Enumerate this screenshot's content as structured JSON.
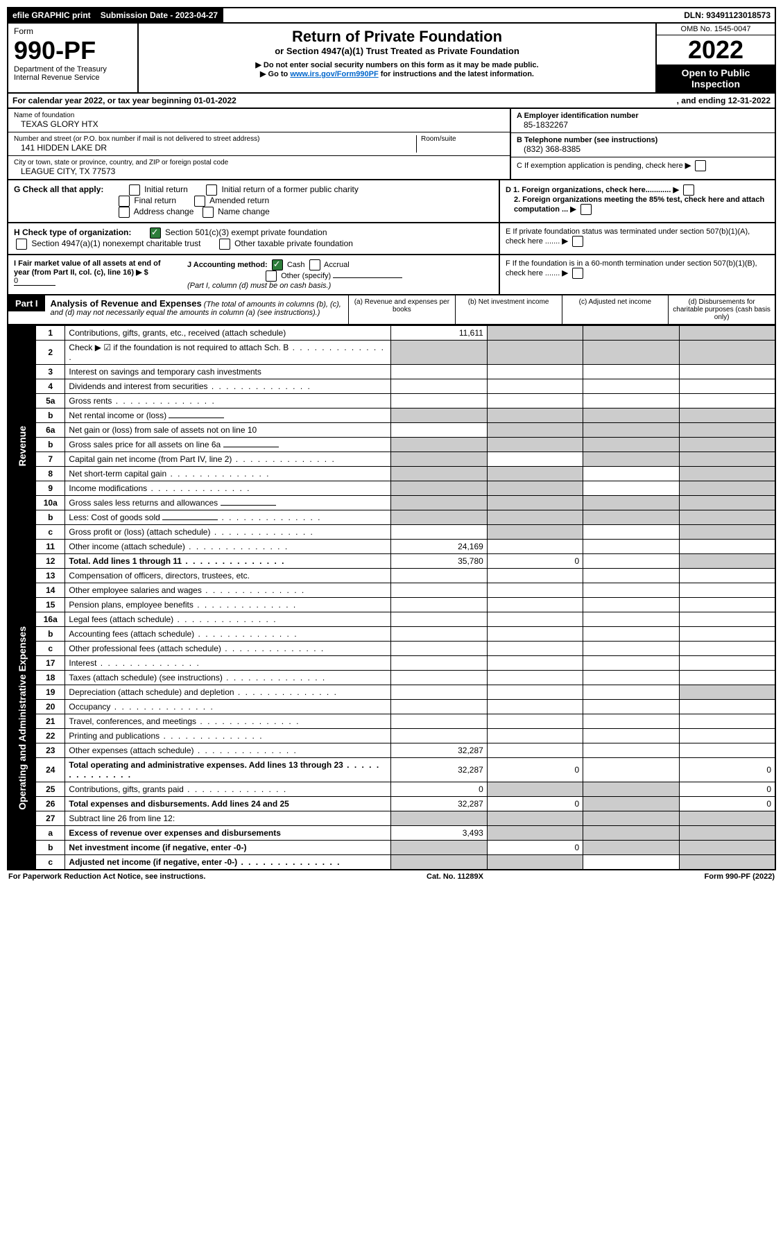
{
  "topbar": {
    "efile": "efile GRAPHIC print",
    "submission_label": "Submission Date - 2023-04-27",
    "dln": "DLN: 93491123018573"
  },
  "header": {
    "form_word": "Form",
    "form_number": "990-PF",
    "dept": "Department of the Treasury",
    "irs": "Internal Revenue Service",
    "omb": "OMB No. 1545-0047",
    "year": "2022",
    "open": "Open to Public Inspection",
    "title": "Return of Private Foundation",
    "subtitle": "or Section 4947(a)(1) Trust Treated as Private Foundation",
    "note1": "▶ Do not enter social security numbers on this form as it may be made public.",
    "note2_pre": "▶ Go to ",
    "note2_link": "www.irs.gov/Form990PF",
    "note2_post": " for instructions and the latest information."
  },
  "calyear": {
    "left": "For calendar year 2022, or tax year beginning 01-01-2022",
    "right": ", and ending 12-31-2022"
  },
  "info": {
    "name_label": "Name of foundation",
    "name": "TEXAS GLORY HTX",
    "addr_label": "Number and street (or P.O. box number if mail is not delivered to street address)",
    "room_label": "Room/suite",
    "addr": "141 HIDDEN LAKE DR",
    "city_label": "City or town, state or province, country, and ZIP or foreign postal code",
    "city": "LEAGUE CITY, TX  77573",
    "a_label": "A Employer identification number",
    "a_value": "85-1832267",
    "b_label": "B Telephone number (see instructions)",
    "b_value": "(832) 368-8385",
    "c_label": "C If exemption application is pending, check here",
    "d1": "D 1. Foreign organizations, check here............",
    "d2": "2. Foreign organizations meeting the 85% test, check here and attach computation ...",
    "e": "E  If private foundation status was terminated under section 507(b)(1)(A), check here .......",
    "f": "F  If the foundation is in a 60-month termination under section 507(b)(1)(B), check here ......."
  },
  "g": {
    "label": "G Check all that apply:",
    "opts": [
      "Initial return",
      "Initial return of a former public charity",
      "Final return",
      "Amended return",
      "Address change",
      "Name change"
    ]
  },
  "h": {
    "label": "H Check type of organization:",
    "opt1": "Section 501(c)(3) exempt private foundation",
    "opt2": "Section 4947(a)(1) nonexempt charitable trust",
    "opt3": "Other taxable private foundation"
  },
  "i": {
    "label": "I Fair market value of all assets at end of year (from Part II, col. (c), line 16)",
    "arrow": "▶ $",
    "value": "0"
  },
  "j": {
    "label": "J Accounting method:",
    "cash": "Cash",
    "accrual": "Accrual",
    "other": "Other (specify)",
    "note": "(Part I, column (d) must be on cash basis.)"
  },
  "part1": {
    "label": "Part I",
    "title": "Analysis of Revenue and Expenses",
    "note": " (The total of amounts in columns (b), (c), and (d) may not necessarily equal the amounts in column (a) (see instructions).)",
    "col_a": "(a)  Revenue and expenses per books",
    "col_b": "(b)  Net investment income",
    "col_c": "(c)  Adjusted net income",
    "col_d": "(d)  Disbursements for charitable purposes (cash basis only)"
  },
  "side": {
    "revenue": "Revenue",
    "expenses": "Operating and Administrative Expenses"
  },
  "rows": [
    {
      "n": "1",
      "t": "Contributions, gifts, grants, etc., received (attach schedule)",
      "a": "11,611",
      "shade": [
        "b",
        "c",
        "d"
      ]
    },
    {
      "n": "2",
      "t": "Check ▶ ☑ if the foundation is not required to attach Sch. B",
      "dots": true,
      "shade": [
        "a",
        "b",
        "c",
        "d"
      ]
    },
    {
      "n": "3",
      "t": "Interest on savings and temporary cash investments"
    },
    {
      "n": "4",
      "t": "Dividends and interest from securities",
      "dots": true
    },
    {
      "n": "5a",
      "t": "Gross rents",
      "dots": true
    },
    {
      "n": "b",
      "t": "Net rental income or (loss)",
      "line": true,
      "shade": [
        "a",
        "b",
        "c",
        "d"
      ]
    },
    {
      "n": "6a",
      "t": "Net gain or (loss) from sale of assets not on line 10",
      "shade": [
        "b",
        "c",
        "d"
      ]
    },
    {
      "n": "b",
      "t": "Gross sales price for all assets on line 6a",
      "line": true,
      "shade": [
        "a",
        "b",
        "c",
        "d"
      ]
    },
    {
      "n": "7",
      "t": "Capital gain net income (from Part IV, line 2)",
      "dots": true,
      "shade": [
        "a",
        "c",
        "d"
      ]
    },
    {
      "n": "8",
      "t": "Net short-term capital gain",
      "dots": true,
      "shade": [
        "a",
        "b",
        "d"
      ]
    },
    {
      "n": "9",
      "t": "Income modifications",
      "dots": true,
      "shade": [
        "a",
        "b",
        "d"
      ]
    },
    {
      "n": "10a",
      "t": "Gross sales less returns and allowances",
      "line": true,
      "shade": [
        "a",
        "b",
        "c",
        "d"
      ]
    },
    {
      "n": "b",
      "t": "Less: Cost of goods sold",
      "dots": true,
      "line": true,
      "shade": [
        "a",
        "b",
        "c",
        "d"
      ]
    },
    {
      "n": "c",
      "t": "Gross profit or (loss) (attach schedule)",
      "dots": true,
      "shade": [
        "b",
        "d"
      ]
    },
    {
      "n": "11",
      "t": "Other income (attach schedule)",
      "dots": true,
      "a": "24,169"
    },
    {
      "n": "12",
      "t": "Total. Add lines 1 through 11",
      "dots": true,
      "bold": true,
      "a": "35,780",
      "b": "0",
      "shade": [
        "d"
      ]
    },
    {
      "n": "13",
      "t": "Compensation of officers, directors, trustees, etc."
    },
    {
      "n": "14",
      "t": "Other employee salaries and wages",
      "dots": true
    },
    {
      "n": "15",
      "t": "Pension plans, employee benefits",
      "dots": true
    },
    {
      "n": "16a",
      "t": "Legal fees (attach schedule)",
      "dots": true
    },
    {
      "n": "b",
      "t": "Accounting fees (attach schedule)",
      "dots": true
    },
    {
      "n": "c",
      "t": "Other professional fees (attach schedule)",
      "dots": true
    },
    {
      "n": "17",
      "t": "Interest",
      "dots": true
    },
    {
      "n": "18",
      "t": "Taxes (attach schedule) (see instructions)",
      "dots": true
    },
    {
      "n": "19",
      "t": "Depreciation (attach schedule) and depletion",
      "dots": true,
      "shade": [
        "d"
      ]
    },
    {
      "n": "20",
      "t": "Occupancy",
      "dots": true
    },
    {
      "n": "21",
      "t": "Travel, conferences, and meetings",
      "dots": true
    },
    {
      "n": "22",
      "t": "Printing and publications",
      "dots": true
    },
    {
      "n": "23",
      "t": "Other expenses (attach schedule)",
      "dots": true,
      "a": "32,287"
    },
    {
      "n": "24",
      "t": "Total operating and administrative expenses. Add lines 13 through 23",
      "dots": true,
      "bold": true,
      "a": "32,287",
      "b": "0",
      "d": "0"
    },
    {
      "n": "25",
      "t": "Contributions, gifts, grants paid",
      "dots": true,
      "a": "0",
      "shade": [
        "b",
        "c"
      ],
      "d": "0"
    },
    {
      "n": "26",
      "t": "Total expenses and disbursements. Add lines 24 and 25",
      "bold": true,
      "a": "32,287",
      "b": "0",
      "shade": [
        "c"
      ],
      "d": "0"
    },
    {
      "n": "27",
      "t": "Subtract line 26 from line 12:",
      "shade": [
        "a",
        "b",
        "c",
        "d"
      ]
    },
    {
      "n": "a",
      "t": "Excess of revenue over expenses and disbursements",
      "bold": true,
      "a": "3,493",
      "shade": [
        "b",
        "c",
        "d"
      ]
    },
    {
      "n": "b",
      "t": "Net investment income (if negative, enter -0-)",
      "bold": true,
      "shade": [
        "a"
      ],
      "b": "0",
      "shade2": [
        "c",
        "d"
      ]
    },
    {
      "n": "c",
      "t": "Adjusted net income (if negative, enter -0-)",
      "bold": true,
      "dots": true,
      "shade": [
        "a",
        "b",
        "d"
      ]
    }
  ],
  "footer": {
    "left": "For Paperwork Reduction Act Notice, see instructions.",
    "mid": "Cat. No. 11289X",
    "right": "Form 990-PF (2022)"
  }
}
